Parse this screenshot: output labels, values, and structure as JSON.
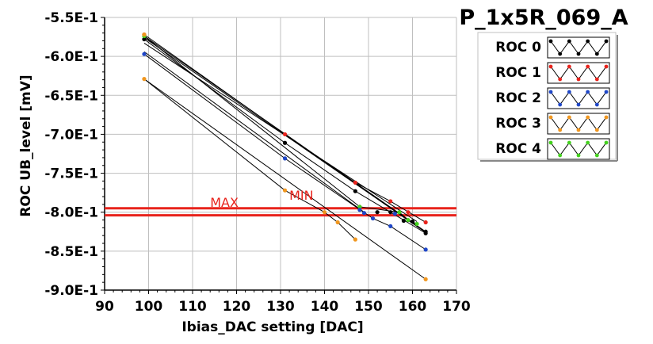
{
  "chart_data": {
    "type": "line",
    "title": "P_1x5R_069_A",
    "xlabel": "Ibias_DAC setting [DAC]",
    "ylabel": "ROC UB_level [mV]",
    "xlim": [
      90,
      170
    ],
    "ylim": [
      -0.9,
      -0.55
    ],
    "xticks": [
      "90",
      "100",
      "110",
      "120",
      "130",
      "140",
      "150",
      "160",
      "170"
    ],
    "yticks": [
      "-5.5E-1",
      "-6.0E-1",
      "-6.5E-1",
      "-7.0E-1",
      "-7.5E-1",
      "-8.0E-1",
      "-8.5E-1",
      "-9.0E-1"
    ],
    "grid": true,
    "legend_position": "top-right",
    "series": [
      {
        "name": "ROC 0",
        "color": "#000000",
        "x": [
          99,
          131,
          147,
          155,
          163
        ],
        "y": [
          -0.578,
          -0.711,
          -0.773,
          -0.8,
          -0.827
        ]
      },
      {
        "name": "ROC 1",
        "color": "#e8231c",
        "x": [
          99,
          131,
          147,
          155,
          163
        ],
        "y": [
          -0.572,
          -0.7,
          -0.762,
          -0.786,
          -0.813
        ]
      },
      {
        "name": "ROC 2",
        "color": "#1f47c8",
        "x": [
          99,
          131,
          151,
          155,
          163
        ],
        "y": [
          -0.597,
          -0.731,
          -0.808,
          -0.818,
          -0.848
        ]
      },
      {
        "name": "ROC 3",
        "color": "#f0961e",
        "x": [
          99,
          131,
          140,
          143,
          147
        ],
        "y": [
          -0.629,
          -0.772,
          -0.8,
          -0.813,
          -0.835
        ]
      },
      {
        "name": "ROC 4",
        "color": "#44d11e",
        "x": [
          99,
          148,
          157,
          159,
          161
        ],
        "y": [
          -0.574,
          -0.793,
          -0.8,
          -0.81,
          -0.815
        ]
      }
    ],
    "extra_lines": [
      {
        "x": [
          99,
          163
        ],
        "y": [
          -0.574,
          -0.825
        ]
      },
      {
        "x": [
          99,
          161
        ],
        "y": [
          -0.583,
          -0.812
        ]
      },
      {
        "x": [
          99,
          163
        ],
        "y": [
          -0.576,
          -0.826
        ]
      },
      {
        "x": [
          99,
          149
        ],
        "y": [
          -0.594,
          -0.8
        ]
      },
      {
        "x": [
          99,
          163
        ],
        "y": [
          -0.629,
          -0.886
        ]
      },
      {
        "x": [
          131,
          163
        ],
        "y": [
          -0.7,
          -0.826
        ]
      }
    ],
    "extra_points": [
      {
        "color": "#f0961e",
        "x": 163,
        "y": -0.886
      },
      {
        "color": "#f0961e",
        "x": 99,
        "y": -0.572
      },
      {
        "color": "#1f47c8",
        "x": 148,
        "y": -0.797
      },
      {
        "color": "#1f47c8",
        "x": 149,
        "y": -0.801
      },
      {
        "color": "#1f47c8",
        "x": 156,
        "y": -0.802
      },
      {
        "color": "#000000",
        "x": 152,
        "y": -0.8
      },
      {
        "color": "#000000",
        "x": 158,
        "y": -0.811
      },
      {
        "color": "#000000",
        "x": 160,
        "y": -0.812
      },
      {
        "color": "#000000",
        "x": 163,
        "y": -0.825
      },
      {
        "color": "#e8231c",
        "x": 159,
        "y": -0.8
      }
    ],
    "threshold_lines": [
      {
        "y": -0.795,
        "color": "#e8231c"
      },
      {
        "y": -0.804,
        "color": "#e8231c"
      }
    ],
    "annotations": [
      {
        "text": "MAX",
        "x": 114,
        "y": -0.793,
        "color": "#e8231c"
      },
      {
        "text": "MIN",
        "x": 132,
        "y": -0.784,
        "color": "#e8231c"
      }
    ]
  }
}
